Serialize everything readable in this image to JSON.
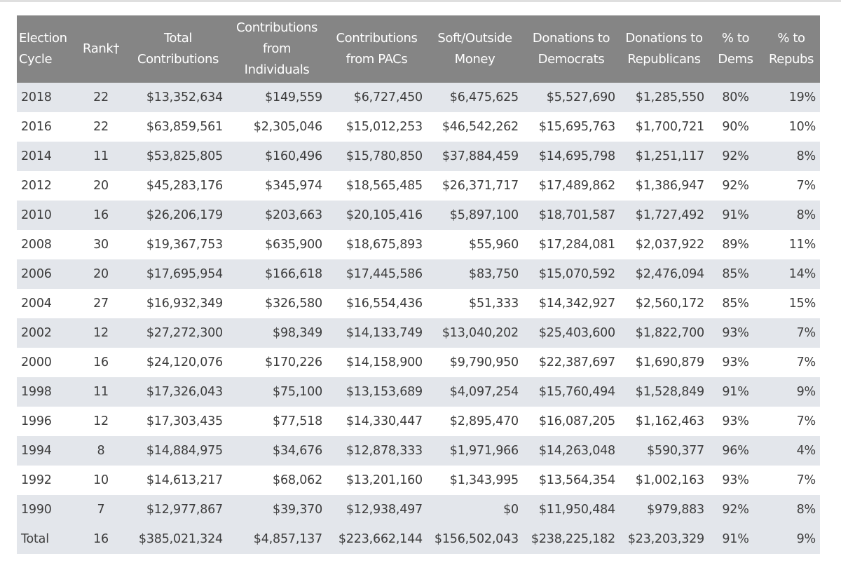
{
  "table": {
    "headers": [
      "Election Cycle",
      "Rank†",
      "Total Contributions",
      "Contributions from Individuals",
      "Contributions from PACs",
      "Soft/Outside Money",
      "Donations to Democrats",
      "Donations to Republicans",
      "% to Dems",
      "% to Repubs"
    ],
    "rows": [
      [
        "2018",
        "22",
        "$13,352,634",
        "$149,559",
        "$6,727,450",
        "$6,475,625",
        "$5,527,690",
        "$1,285,550",
        "80%",
        "19%"
      ],
      [
        "2016",
        "22",
        "$63,859,561",
        "$2,305,046",
        "$15,012,253",
        "$46,542,262",
        "$15,695,763",
        "$1,700,721",
        "90%",
        "10%"
      ],
      [
        "2014",
        "11",
        "$53,825,805",
        "$160,496",
        "$15,780,850",
        "$37,884,459",
        "$14,695,798",
        "$1,251,117",
        "92%",
        "8%"
      ],
      [
        "2012",
        "20",
        "$45,283,176",
        "$345,974",
        "$18,565,485",
        "$26,371,717",
        "$17,489,862",
        "$1,386,947",
        "92%",
        "7%"
      ],
      [
        "2010",
        "16",
        "$26,206,179",
        "$203,663",
        "$20,105,416",
        "$5,897,100",
        "$18,701,587",
        "$1,727,492",
        "91%",
        "8%"
      ],
      [
        "2008",
        "30",
        "$19,367,753",
        "$635,900",
        "$18,675,893",
        "$55,960",
        "$17,284,081",
        "$2,037,922",
        "89%",
        "11%"
      ],
      [
        "2006",
        "20",
        "$17,695,954",
        "$166,618",
        "$17,445,586",
        "$83,750",
        "$15,070,592",
        "$2,476,094",
        "85%",
        "14%"
      ],
      [
        "2004",
        "27",
        "$16,932,349",
        "$326,580",
        "$16,554,436",
        "$51,333",
        "$14,342,927",
        "$2,560,172",
        "85%",
        "15%"
      ],
      [
        "2002",
        "12",
        "$27,272,300",
        "$98,349",
        "$14,133,749",
        "$13,040,202",
        "$25,403,600",
        "$1,822,700",
        "93%",
        "7%"
      ],
      [
        "2000",
        "16",
        "$24,120,076",
        "$170,226",
        "$14,158,900",
        "$9,790,950",
        "$22,387,697",
        "$1,690,879",
        "93%",
        "7%"
      ],
      [
        "1998",
        "11",
        "$17,326,043",
        "$75,100",
        "$13,153,689",
        "$4,097,254",
        "$15,760,494",
        "$1,528,849",
        "91%",
        "9%"
      ],
      [
        "1996",
        "12",
        "$17,303,435",
        "$77,518",
        "$14,330,447",
        "$2,895,470",
        "$16,087,205",
        "$1,162,463",
        "93%",
        "7%"
      ],
      [
        "1994",
        "8",
        "$14,884,975",
        "$34,676",
        "$12,878,333",
        "$1,971,966",
        "$14,263,048",
        "$590,377",
        "96%",
        "4%"
      ],
      [
        "1992",
        "10",
        "$14,613,217",
        "$68,062",
        "$13,201,160",
        "$1,343,995",
        "$13,564,354",
        "$1,002,163",
        "93%",
        "7%"
      ],
      [
        "1990",
        "7",
        "$12,977,867",
        "$39,370",
        "$12,938,497",
        "$0",
        "$11,950,484",
        "$979,883",
        "92%",
        "8%"
      ],
      [
        "Total",
        "16",
        "$385,021,324",
        "$4,857,137",
        "$223,662,144",
        "$156,502,043",
        "$238,225,182",
        "$23,203,329",
        "91%",
        "9%"
      ]
    ]
  },
  "colors": {
    "header_bg": "#858585",
    "header_text": "#ffffff",
    "stripe_bg": "#e3e6eb",
    "body_text": "#3d3d3d"
  }
}
